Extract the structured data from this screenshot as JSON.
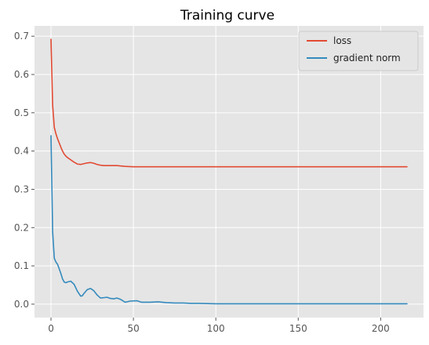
{
  "chart_data": {
    "type": "line",
    "title": "Training curve",
    "xlabel": "",
    "ylabel": "",
    "xlim": [
      -10,
      226
    ],
    "ylim": [
      -0.035,
      0.727
    ],
    "xticks": [
      0,
      50,
      100,
      150,
      200
    ],
    "yticks": [
      0.0,
      0.1,
      0.2,
      0.3,
      0.4,
      0.5,
      0.6,
      0.7
    ],
    "grid": true,
    "legend_position": "top-right",
    "colors": {
      "background": "#e5e5e5",
      "grid": "#ffffff"
    },
    "series": [
      {
        "name": "loss",
        "color": "#e24a33",
        "x": [
          0,
          1,
          2,
          3,
          4,
          5,
          6,
          7,
          8,
          9,
          10,
          12,
          14,
          16,
          18,
          20,
          22,
          24,
          26,
          28,
          30,
          32,
          35,
          40,
          45,
          50,
          60,
          80,
          100,
          130,
          160,
          190,
          216
        ],
        "y": [
          0.692,
          0.52,
          0.462,
          0.445,
          0.432,
          0.421,
          0.41,
          0.4,
          0.392,
          0.387,
          0.383,
          0.377,
          0.371,
          0.366,
          0.365,
          0.367,
          0.369,
          0.37,
          0.368,
          0.365,
          0.363,
          0.362,
          0.362,
          0.362,
          0.36,
          0.359,
          0.359,
          0.359,
          0.359,
          0.359,
          0.359,
          0.359,
          0.359
        ]
      },
      {
        "name": "gradient norm",
        "color": "#348abd",
        "x": [
          0,
          1,
          2,
          3,
          4,
          5,
          6,
          7,
          8,
          9,
          10,
          12,
          14,
          16,
          18,
          19,
          20,
          22,
          24,
          26,
          28,
          30,
          32,
          34,
          36,
          38,
          40,
          42,
          45,
          48,
          52,
          55,
          60,
          65,
          70,
          75,
          80,
          85,
          90,
          100,
          110,
          130,
          160,
          190,
          216
        ],
        "y": [
          0.44,
          0.19,
          0.12,
          0.11,
          0.104,
          0.092,
          0.08,
          0.066,
          0.058,
          0.056,
          0.058,
          0.06,
          0.052,
          0.034,
          0.021,
          0.022,
          0.028,
          0.038,
          0.041,
          0.035,
          0.024,
          0.016,
          0.017,
          0.018,
          0.015,
          0.014,
          0.016,
          0.013,
          0.005,
          0.008,
          0.009,
          0.005,
          0.005,
          0.006,
          0.004,
          0.003,
          0.003,
          0.002,
          0.002,
          0.001,
          0.001,
          0.001,
          0.001,
          0.001,
          0.001
        ]
      }
    ]
  }
}
